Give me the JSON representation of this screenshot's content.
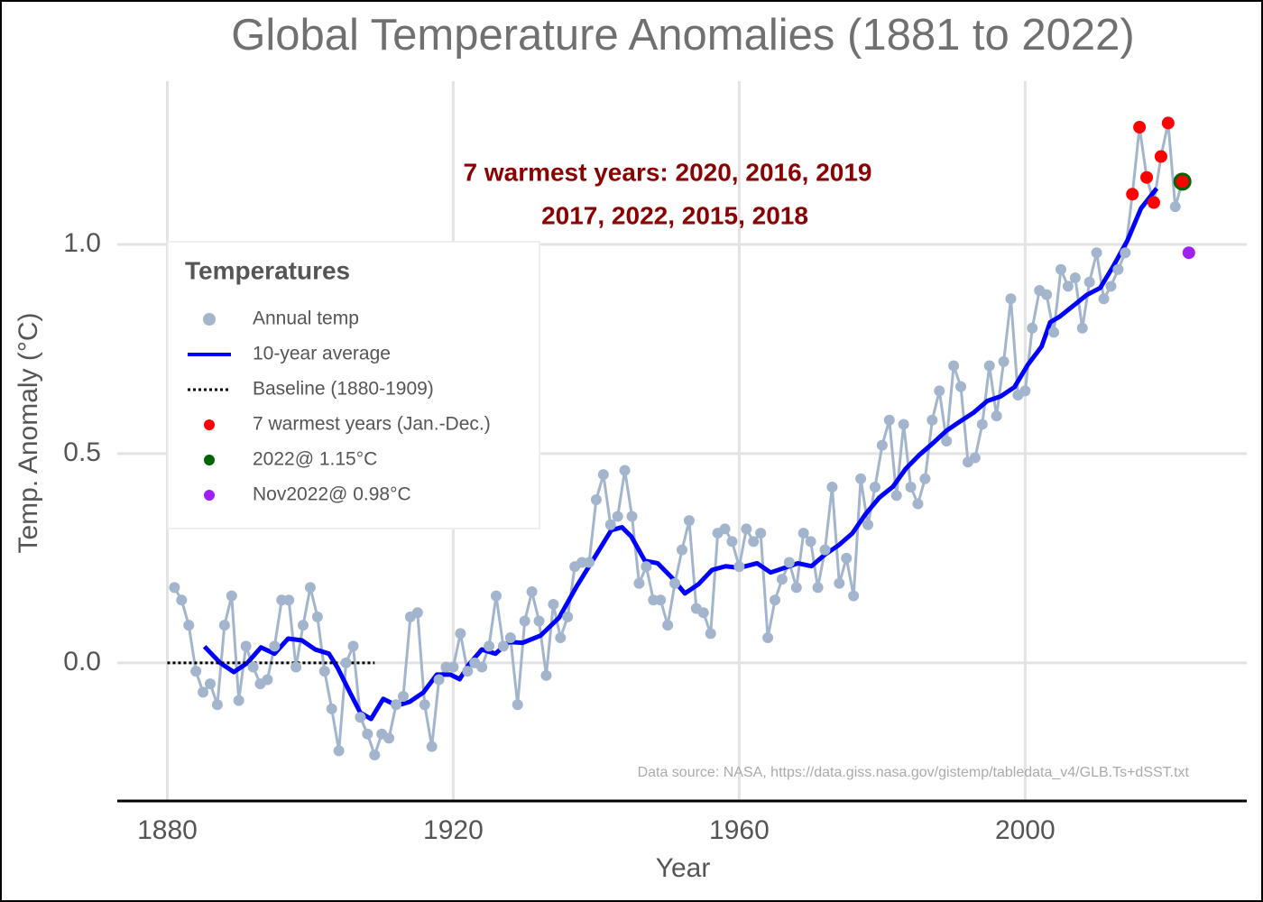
{
  "chart_data": {
    "type": "line",
    "title": "Global Temperature Anomalies (1881 to 2022)",
    "x_label": "Year",
    "y_label": "Temp. Anomaly (°C)",
    "xlim": [
      1873,
      2031
    ],
    "ylim": [
      -0.33,
      1.39
    ],
    "xticks": [
      1880,
      1920,
      1960,
      2000
    ],
    "yticks": [
      {
        "value": 0,
        "label": "0.0"
      },
      {
        "value": 0.5,
        "label": "0.5"
      },
      {
        "value": 1,
        "label": "1.0"
      }
    ],
    "grid": true,
    "legend_title": "Temperatures",
    "legend_position": "upper left",
    "annotations": [
      "7 warmest years: 2020, 2016, 2019",
      "2017, 2022, 2015, 2018"
    ],
    "source": "Data source: NASA, https://data.giss.nasa.gov/gistemp/tabledata_v4/GLB.Ts+dSST.txt",
    "series": [
      {
        "name": "Annual temp",
        "color": "#a2b5cd",
        "mode": "line-points",
        "x": [
          1881,
          1882,
          1883,
          1884,
          1885,
          1886,
          1887,
          1888,
          1889,
          1890,
          1891,
          1892,
          1893,
          1894,
          1895,
          1896,
          1897,
          1898,
          1899,
          1900,
          1901,
          1902,
          1903,
          1904,
          1905,
          1906,
          1907,
          1908,
          1909,
          1910,
          1911,
          1912,
          1913,
          1914,
          1915,
          1916,
          1917,
          1918,
          1919,
          1920,
          1921,
          1922,
          1923,
          1924,
          1925,
          1926,
          1927,
          1928,
          1929,
          1930,
          1931,
          1932,
          1933,
          1934,
          1935,
          1936,
          1937,
          1938,
          1939,
          1940,
          1941,
          1942,
          1943,
          1944,
          1945,
          1946,
          1947,
          1948,
          1949,
          1950,
          1951,
          1952,
          1953,
          1954,
          1955,
          1956,
          1957,
          1958,
          1959,
          1960,
          1961,
          1962,
          1963,
          1964,
          1965,
          1966,
          1967,
          1968,
          1969,
          1970,
          1971,
          1972,
          1973,
          1974,
          1975,
          1976,
          1977,
          1978,
          1979,
          1980,
          1981,
          1982,
          1983,
          1984,
          1985,
          1986,
          1987,
          1988,
          1989,
          1990,
          1991,
          1992,
          1993,
          1994,
          1995,
          1996,
          1997,
          1998,
          1999,
          2000,
          2001,
          2002,
          2003,
          2004,
          2005,
          2006,
          2007,
          2008,
          2009,
          2010,
          2011,
          2012,
          2013,
          2014,
          2015,
          2016,
          2017,
          2018,
          2019,
          2020,
          2021,
          2022
        ],
        "values": [
          0.18,
          0.15,
          0.09,
          -0.02,
          -0.07,
          -0.05,
          -0.1,
          0.09,
          0.16,
          -0.09,
          0.04,
          -0.01,
          -0.05,
          -0.04,
          0.04,
          0.15,
          0.15,
          -0.01,
          0.09,
          0.18,
          0.11,
          -0.02,
          -0.11,
          -0.21,
          0.0,
          0.04,
          -0.13,
          -0.17,
          -0.22,
          -0.17,
          -0.18,
          -0.1,
          -0.08,
          0.11,
          0.12,
          -0.1,
          -0.2,
          -0.04,
          -0.01,
          -0.01,
          0.07,
          -0.02,
          0.0,
          -0.01,
          0.04,
          0.16,
          0.04,
          0.06,
          -0.1,
          0.1,
          0.17,
          0.1,
          -0.03,
          0.14,
          0.06,
          0.11,
          0.23,
          0.24,
          0.24,
          0.39,
          0.45,
          0.33,
          0.35,
          0.46,
          0.35,
          0.19,
          0.23,
          0.15,
          0.15,
          0.09,
          0.19,
          0.27,
          0.34,
          0.13,
          0.12,
          0.07,
          0.31,
          0.32,
          0.29,
          0.23,
          0.32,
          0.29,
          0.31,
          0.06,
          0.15,
          0.2,
          0.24,
          0.18,
          0.31,
          0.29,
          0.18,
          0.27,
          0.42,
          0.19,
          0.25,
          0.16,
          0.44,
          0.33,
          0.42,
          0.52,
          0.58,
          0.4,
          0.57,
          0.42,
          0.38,
          0.44,
          0.58,
          0.65,
          0.53,
          0.71,
          0.66,
          0.48,
          0.49,
          0.57,
          0.71,
          0.59,
          0.72,
          0.87,
          0.64,
          0.65,
          0.8,
          0.89,
          0.88,
          0.79,
          0.94,
          0.9,
          0.92,
          0.8,
          0.91,
          0.98,
          0.87,
          0.9,
          0.94,
          0.98,
          1.12,
          1.28,
          1.16,
          1.1,
          1.21,
          1.29,
          1.09,
          1.15
        ]
      },
      {
        "name": "10-year average",
        "color": "#0000ff",
        "mode": "line",
        "x": [
          1885.2,
          1887.4,
          1889.3,
          1891.2,
          1893.1,
          1895,
          1896.9,
          1898.8,
          1900.7,
          1902.6,
          1903.8,
          1905.7,
          1907,
          1908.5,
          1910.2,
          1912.1,
          1913.9,
          1915.8,
          1917.7,
          1919.6,
          1920.9,
          1922.1,
          1924,
          1925.9,
          1927.8,
          1929.7,
          1932.2,
          1934.8,
          1937.3,
          1939.8,
          1942.1,
          1943.6,
          1944.9,
          1946.8,
          1948.6,
          1950.5,
          1952.4,
          1954.3,
          1956.2,
          1958.1,
          1960,
          1962.5,
          1964.4,
          1966.3,
          1968.2,
          1970.1,
          1972,
          1973.9,
          1975.8,
          1977.7,
          1979.6,
          1981.5,
          1983.3,
          1985.2,
          1987.1,
          1989,
          1990.9,
          1992.8,
          1994.7,
          1996.6,
          1998.5,
          2000.4,
          2002.3,
          2003.5,
          2004.8,
          2006.7,
          2008.6,
          2010.5,
          2012.4,
          2014.3,
          2016.2,
          2018.4
        ],
        "values": [
          0.039,
          0.0,
          -0.022,
          0.0,
          0.037,
          0.022,
          0.058,
          0.054,
          0.032,
          0.022,
          -0.011,
          -0.076,
          -0.119,
          -0.134,
          -0.086,
          -0.102,
          -0.093,
          -0.071,
          -0.028,
          -0.028,
          -0.039,
          -0.006,
          0.032,
          0.022,
          0.05,
          0.048,
          0.065,
          0.108,
          0.184,
          0.253,
          0.317,
          0.324,
          0.302,
          0.244,
          0.238,
          0.205,
          0.166,
          0.188,
          0.222,
          0.231,
          0.227,
          0.238,
          0.216,
          0.227,
          0.238,
          0.231,
          0.259,
          0.281,
          0.309,
          0.356,
          0.395,
          0.421,
          0.464,
          0.497,
          0.525,
          0.555,
          0.577,
          0.598,
          0.626,
          0.637,
          0.659,
          0.713,
          0.756,
          0.814,
          0.827,
          0.853,
          0.879,
          0.896,
          0.95,
          1.009,
          1.086,
          1.134
        ]
      },
      {
        "name": "Baseline (1880-1909)",
        "color": "#000000",
        "mode": "dotted",
        "x": [
          1880,
          1909
        ],
        "values": [
          0,
          0
        ]
      },
      {
        "name": "7 warmest years (Jan.-Dec.)",
        "color": "#ff0000",
        "mode": "points",
        "x": [
          2015,
          2016,
          2017,
          2018,
          2019,
          2020,
          2022
        ],
        "values": [
          1.12,
          1.28,
          1.16,
          1.1,
          1.21,
          1.29,
          1.15
        ]
      },
      {
        "name": "2022@ 1.15°C",
        "color": "#006400",
        "mode": "points",
        "x": [
          2022
        ],
        "values": [
          1.15
        ]
      },
      {
        "name": "Nov2022@ 0.98°C",
        "color": "#a020f0",
        "mode": "points",
        "x": [
          2022.9
        ],
        "values": [
          0.98
        ]
      }
    ]
  }
}
